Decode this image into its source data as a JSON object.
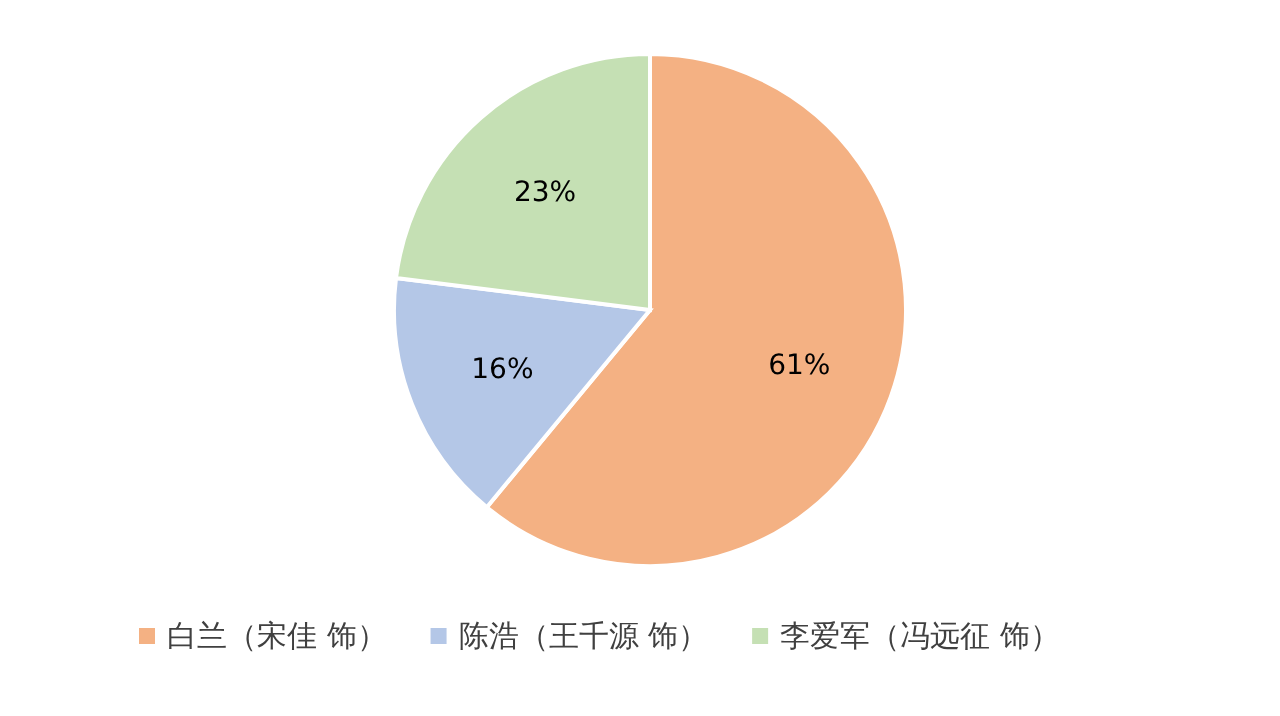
{
  "chart_data": {
    "type": "pie",
    "categories": [
      "白兰（宋佳 饰）",
      "陈浩（王千源 饰）",
      "李爱军（冯远征 饰）"
    ],
    "values": [
      61,
      16,
      23
    ],
    "colors": [
      "#f4b183",
      "#b4c7e7",
      "#c5e0b4"
    ],
    "value_labels": [
      "61%",
      "16%",
      "23%"
    ],
    "legend": "bottom"
  }
}
